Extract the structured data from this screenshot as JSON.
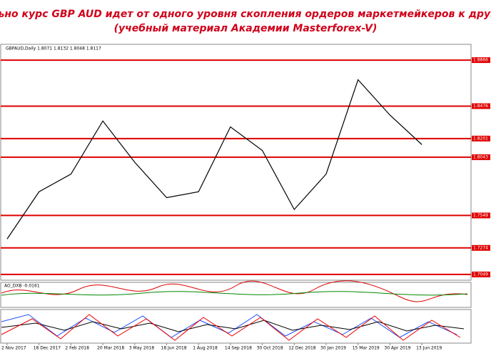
{
  "chart_data": {
    "type": "line",
    "title": "Реально курс GBP AUD идет от одного уровня скопления ордеров маркетмейкеров к другому.",
    "subtitle": "(учебный материал Академии Masterforex-V)",
    "header": "GBPAUD,Daily  1.8071 1.8132 1.8048 1.8117",
    "indicator": "AO_DXB -0.0161",
    "categories": [
      "2 Nov 2017",
      "18 Dec 2017",
      "2 Feb 2018",
      "20 Mar 2018",
      "3 May 2018",
      "18 Jun 2018",
      "1 Aug 2018",
      "14 Sep 2018",
      "30 Oct 2018",
      "12 Dec 2018",
      "30 Jan 2019",
      "15 Mar 2019",
      "30 Apr 2019",
      "13 Jun 2019"
    ],
    "series": [
      {
        "name": "GBPAUD,Daily",
        "color": "#000000",
        "values": [
          1.735,
          1.775,
          1.79,
          1.835,
          1.8,
          1.77,
          1.775,
          1.83,
          1.81,
          1.76,
          1.79,
          1.87,
          1.84,
          1.815
        ]
      }
    ],
    "ylim": [
      1.7,
      1.9
    ],
    "yticks": [
      1.8866,
      1.8476,
      1.8201,
      1.8043,
      1.7549,
      1.7274,
      1.7049
    ],
    "level_color": "#e00000",
    "grid": true
  }
}
